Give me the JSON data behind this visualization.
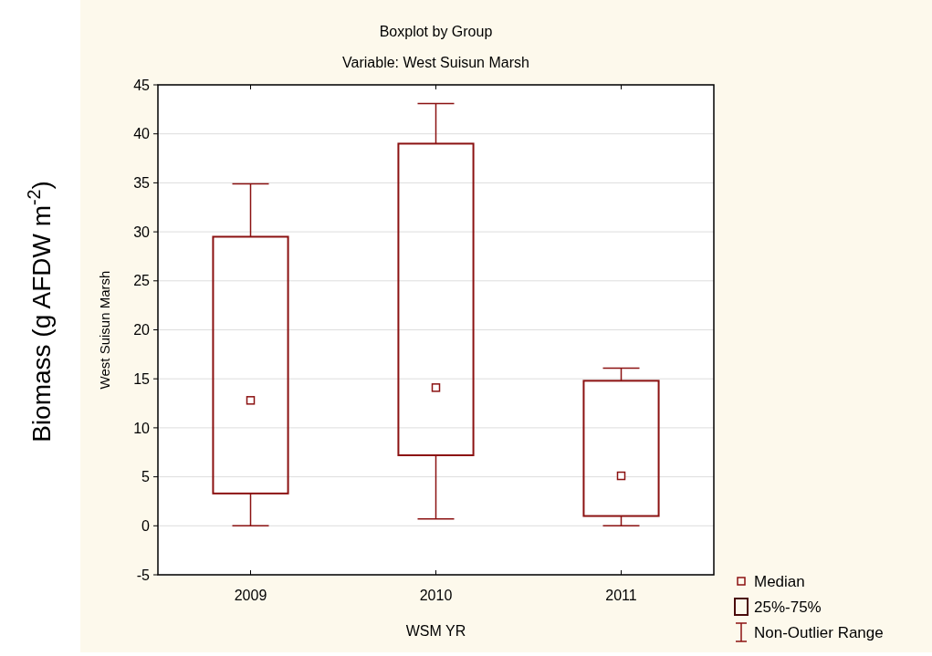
{
  "chart_data": {
    "type": "box",
    "title": "Boxplot by Group",
    "subtitle": "Variable: West Suisun Marsh",
    "xlabel": "WSM YR",
    "ylabel": "West Suisun Marsh",
    "categories": [
      "2009",
      "2010",
      "2011"
    ],
    "color": "#8b1111",
    "boxes": [
      {
        "low": 0,
        "q1": 3.3,
        "median": 12.8,
        "q3": 29.5,
        "high": 34.9
      },
      {
        "low": 0.7,
        "q1": 7.2,
        "median": 14.1,
        "q3": 39.0,
        "high": 43.1
      },
      {
        "low": 0,
        "q1": 1.0,
        "median": 5.1,
        "q3": 14.8,
        "high": 16.1
      }
    ],
    "ylim": [
      -5,
      45
    ],
    "yticks": [
      -5,
      0,
      5,
      10,
      15,
      20,
      25,
      30,
      35,
      40,
      45
    ],
    "grid": "y",
    "annotations": [
      "Biomass (g AFDW m$^{-2}$)",
      "Median",
      "25%-75%",
      "Non-Outlier Range"
    ]
  }
}
